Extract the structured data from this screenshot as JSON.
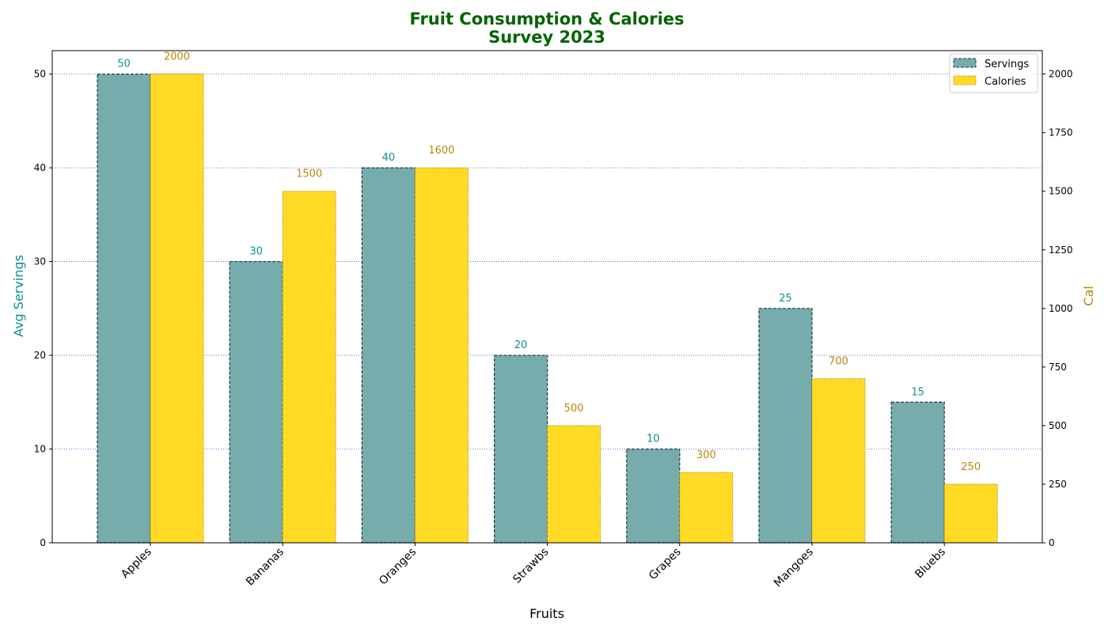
{
  "chart_data": {
    "type": "bar",
    "title_lines": [
      "Fruit Consumption & Calories",
      "Survey 2023"
    ],
    "xlabel": "Fruits",
    "ylabel_left": "Avg Servings",
    "ylabel_right": "Cal",
    "categories": [
      "Apples",
      "Bananas",
      "Oranges",
      "Strawbs",
      "Grapes",
      "Mangoes",
      "Bluebs"
    ],
    "series": [
      {
        "name": "Servings",
        "axis": "left",
        "values": [
          50,
          30,
          40,
          20,
          10,
          25,
          15
        ],
        "color": "#77acac",
        "edge_color": "#1f3a48",
        "label_color": "#0e8f8f"
      },
      {
        "name": "Calories",
        "axis": "right",
        "values": [
          2000,
          1500,
          1600,
          500,
          300,
          700,
          250
        ],
        "color": "#ffdb26",
        "edge_color": "#b8860b",
        "label_color": "#b8860b"
      }
    ],
    "ylim_left": [
      0,
      52.5
    ],
    "ylim_right": [
      0,
      2100
    ],
    "yticks_left": [
      0,
      10,
      20,
      30,
      40,
      50
    ],
    "yticks_right": [
      0,
      250,
      500,
      750,
      1000,
      1250,
      1500,
      1750,
      2000
    ],
    "grid": "horizontal dotted",
    "grid_color": "#4a4ad0",
    "legend_position": "top-right",
    "title_color": "#006400",
    "left_axis_color": "#0e8f8f",
    "right_axis_color": "#b8860b"
  }
}
